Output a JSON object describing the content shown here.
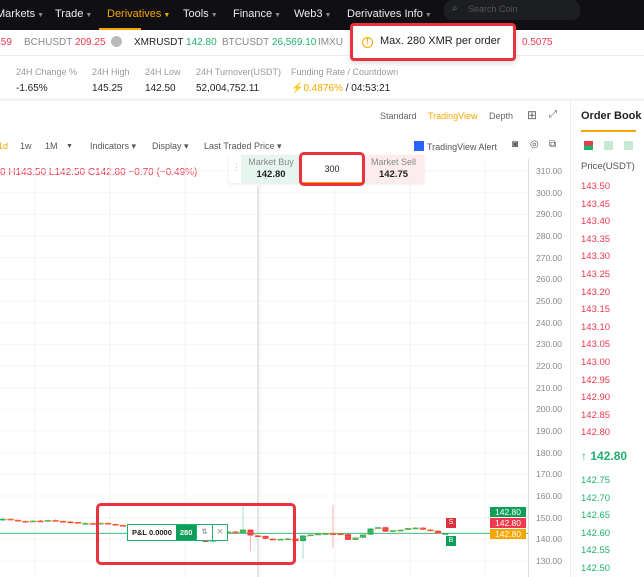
{
  "nav": {
    "items": [
      {
        "label": "Markets"
      },
      {
        "label": "Trade"
      },
      {
        "label": "Derivatives",
        "active": true
      },
      {
        "label": "Tools"
      },
      {
        "label": "Finance"
      },
      {
        "label": "Web3"
      },
      {
        "label": "Derivatives Info"
      }
    ],
    "search_placeholder": "Search Coin"
  },
  "ticker": [
    {
      "symbol": "",
      "price": ".59",
      "dir": "down"
    },
    {
      "symbol": "BCHUSDT",
      "price": "209.25",
      "dir": "down"
    },
    {
      "symbol": "XMRUSDT",
      "price": "142.80",
      "dir": "up"
    },
    {
      "symbol": "BTCUSDT",
      "price": "26,569.10",
      "dir": "up"
    },
    {
      "symbol": "IMXU",
      "price": "",
      "dir": ""
    },
    {
      "symbol": "",
      "price": "0.5075",
      "dir": "down"
    }
  ],
  "toast": {
    "message": "Max. 280 XMR per order",
    "icon": "warning-icon"
  },
  "stats": [
    {
      "label": "24H Change %",
      "value": "-1.65%"
    },
    {
      "label": "24H High",
      "value": "145.25"
    },
    {
      "label": "24H Low",
      "value": "142.50"
    },
    {
      "label": "24H Turnover(USDT)",
      "value": "52,004,752.11"
    },
    {
      "label": "Funding Rate / Countdown",
      "value": "0.4876%",
      "value2": " / 04:53:21"
    }
  ],
  "chart": {
    "views": [
      "Standard",
      "TradingView",
      "Depth"
    ],
    "active_view": "TradingView",
    "intervals": [
      "1d",
      "1w",
      "1M"
    ],
    "toolbar": {
      "indicators": "Indicators",
      "display": "Display",
      "price_type": "Last Traded Price",
      "alert": "TradingView Alert"
    },
    "ohlc": "0 H143.50 L142.50 C142.80 −0.70 (−0.49%)",
    "quick_trade": {
      "buy_label": "Market Buy",
      "buy_price": "142.80",
      "qty": "300",
      "sell_label": "Market Sell",
      "sell_price": "142.75"
    },
    "axis": [
      "310.00",
      "300.00",
      "290.00",
      "280.00",
      "270.00",
      "260.00",
      "250.00",
      "240.00",
      "230.00",
      "220.00",
      "210.00",
      "200.00",
      "190.00",
      "180.00",
      "170.00",
      "160.00",
      "150.00",
      "140.00",
      "130.00"
    ],
    "price_tags": [
      "142.80",
      "142.80",
      "142.80"
    ],
    "position": {
      "pnl": "P&L 0.0000",
      "qty": "280"
    },
    "markers": {
      "sell": "S",
      "buy": "B"
    },
    "colors": {
      "up": "#20b26c",
      "down": "#f0384d",
      "last": "#f7a600"
    },
    "candles": [
      [
        149,
        149.5,
        148.5,
        149.8
      ],
      [
        149.5,
        149,
        148.8,
        149.7
      ],
      [
        149,
        148.5,
        148.2,
        149.2
      ],
      [
        148.5,
        148,
        147.8,
        148.7
      ],
      [
        148,
        148.6,
        147.8,
        148.8
      ],
      [
        148.6,
        148.3,
        148,
        148.9
      ],
      [
        148.3,
        148.9,
        148.1,
        149.1
      ],
      [
        148.9,
        148.5,
        148.2,
        149.2
      ],
      [
        148.5,
        148.2,
        148,
        148.7
      ],
      [
        148.2,
        148,
        147.6,
        148.4
      ],
      [
        148,
        147.4,
        147.2,
        148.2
      ],
      [
        147.4,
        147.5,
        147.2,
        147.9
      ],
      [
        147.5,
        147.2,
        147,
        147.7
      ],
      [
        147.2,
        147.6,
        147,
        147.8
      ],
      [
        147.6,
        147.1,
        146.8,
        147.8
      ],
      [
        147.1,
        146.6,
        146.4,
        147.3
      ],
      [
        146.6,
        146.2,
        146,
        146.8
      ],
      [
        146.2,
        146.3,
        146,
        146.6
      ],
      [
        146.3,
        145.4,
        145.2,
        146.5
      ],
      [
        145.4,
        140,
        139.8,
        145.6
      ],
      [
        140,
        142.4,
        139.8,
        142.6
      ],
      [
        142.4,
        143,
        142.2,
        143.3
      ],
      [
        143,
        144.2,
        142.8,
        144.4
      ],
      [
        144.2,
        144.8,
        144,
        145
      ],
      [
        144.8,
        143.5,
        143.3,
        145
      ],
      [
        143.5,
        142.8,
        142.5,
        143.8
      ],
      [
        142.8,
        139.5,
        139.3,
        143
      ],
      [
        139.5,
        139,
        138.8,
        139.8
      ],
      [
        139,
        140.5,
        138.8,
        140.8
      ],
      [
        140.5,
        142.8,
        140.3,
        143
      ],
      [
        142.8,
        143.6,
        142.6,
        143.8
      ],
      [
        143.6,
        143,
        142.8,
        143.8
      ],
      [
        143,
        144.5,
        142.8,
        156
      ],
      [
        144.5,
        141.8,
        134.5,
        144.7
      ],
      [
        141.8,
        141.6,
        141.4,
        142
      ],
      [
        141.6,
        140.3,
        140,
        141.8
      ],
      [
        140.3,
        140,
        139.8,
        140.5
      ],
      [
        140,
        140.2,
        139.8,
        140.4
      ],
      [
        140.2,
        140.4,
        140,
        140.6
      ],
      [
        140.4,
        139.2,
        139,
        140.6
      ],
      [
        139.2,
        141.8,
        131,
        142
      ],
      [
        141.8,
        142.2,
        141.6,
        142.4
      ],
      [
        142.2,
        142.6,
        142,
        142.8
      ],
      [
        142.6,
        142.8,
        142.4,
        143
      ],
      [
        142.8,
        142.7,
        136,
        156
      ],
      [
        142.7,
        142.4,
        142.2,
        142.9
      ],
      [
        142.4,
        139.8,
        139.6,
        142.6
      ],
      [
        139.8,
        140.8,
        139.6,
        141
      ],
      [
        140.8,
        142.2,
        140.6,
        142.4
      ],
      [
        142.2,
        145,
        142,
        145.2
      ],
      [
        145,
        145.6,
        144.8,
        145.8
      ],
      [
        145.6,
        143.6,
        143.4,
        145.8
      ],
      [
        143.6,
        144.2,
        143.4,
        144.4
      ],
      [
        144.2,
        144.4,
        144,
        144.6
      ],
      [
        144.4,
        145.2,
        144.2,
        145.4
      ],
      [
        145.2,
        145.4,
        145,
        145.6
      ],
      [
        145.4,
        144.5,
        144.3,
        145.6
      ],
      [
        144.5,
        144,
        143.8,
        144.7
      ],
      [
        144,
        142.8,
        142.6,
        144.2
      ],
      [
        142.8,
        142.8,
        142.6,
        143
      ]
    ]
  },
  "order_book": {
    "title": "Order Book",
    "column": "Price(USDT)",
    "asks": [
      "143.50",
      "143.45",
      "143.40",
      "143.35",
      "143.30",
      "143.25",
      "143.20",
      "143.15",
      "143.10",
      "143.05",
      "143.00",
      "142.95",
      "142.90",
      "142.85",
      "142.80"
    ],
    "last": "142.80",
    "bids": [
      "142.75",
      "142.70",
      "142.65",
      "142.60",
      "142.55",
      "142.50"
    ]
  }
}
